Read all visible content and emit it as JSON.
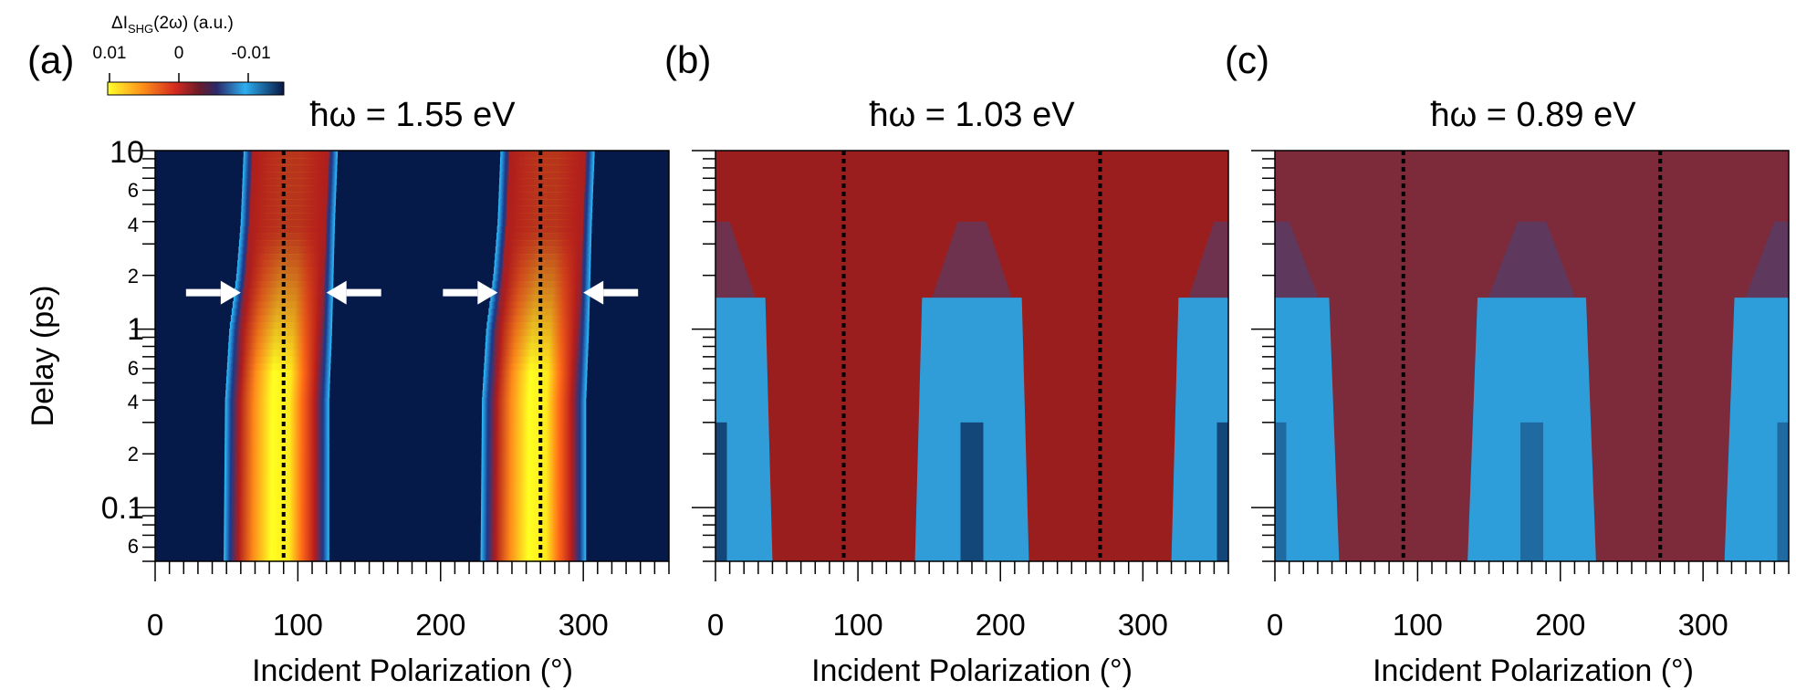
{
  "colorbar": {
    "title_prefix": "ΔI",
    "title_subscript": "SHG",
    "title_suffix": "(2ω) (a.u.)",
    "ticks": [
      "0.01",
      "0",
      "-0.01"
    ],
    "colors": [
      "#ffff2b",
      "#ff9a1a",
      "#d62b1e",
      "#7a1a1a",
      "#1a1a4a",
      "#2eaef0",
      "#0a1a4a"
    ]
  },
  "y_axis": {
    "label": "Delay (ps)",
    "scale": "log",
    "range": [
      0.05,
      10
    ],
    "major_labels": [
      "10",
      "1",
      "0.1"
    ],
    "minor_labels": [
      "6",
      "4",
      "2",
      "6",
      "4",
      "2",
      "6"
    ]
  },
  "x_axis": {
    "label": "Incident Polarization (°)",
    "range": [
      0,
      360
    ],
    "tick_labels": [
      "0",
      "100",
      "200",
      "300"
    ]
  },
  "chart_data": [
    {
      "type": "heatmap",
      "panel": "(a)",
      "title": "ħω = 1.55 eV",
      "xlabel": "Incident Polarization (°)",
      "ylabel": "Delay (ps)",
      "xlim": [
        0,
        360
      ],
      "ylim": [
        0.05,
        10
      ],
      "yscale": "log",
      "dashed_lines_x": [
        90,
        270
      ],
      "background": "#061a4a",
      "arrows": [
        {
          "x": 60,
          "y": 1.6,
          "direction": "right"
        },
        {
          "x": 120,
          "y": 1.6,
          "direction": "left"
        },
        {
          "x": 240,
          "y": 1.6,
          "direction": "right"
        },
        {
          "x": 300,
          "y": 1.6,
          "direction": "left"
        }
      ],
      "lobes": [
        {
          "center": 80,
          "left_edge": [
            [
              0.05,
              48
            ],
            [
              0.4,
              49
            ],
            [
              1.0,
              52
            ],
            [
              2.0,
              57
            ],
            [
              4.0,
              60
            ],
            [
              10,
              62
            ]
          ],
          "right_edge": [
            [
              0.05,
              122
            ],
            [
              0.4,
              122
            ],
            [
              1.0,
              124
            ],
            [
              2.0,
              125
            ],
            [
              4.0,
              126
            ],
            [
              10,
              128
            ]
          ]
        },
        {
          "center": 260,
          "left_edge": [
            [
              0.05,
              228
            ],
            [
              0.4,
              229
            ],
            [
              1.0,
              232
            ],
            [
              2.0,
              237
            ],
            [
              4.0,
              240
            ],
            [
              10,
              242
            ]
          ],
          "right_edge": [
            [
              0.05,
              302
            ],
            [
              0.4,
              302
            ],
            [
              1.0,
              304
            ],
            [
              2.0,
              305
            ],
            [
              4.0,
              306
            ],
            [
              10,
              308
            ]
          ]
        }
      ]
    },
    {
      "type": "heatmap",
      "panel": "(b)",
      "title": "ħω = 1.03 eV",
      "xlabel": "Incident Polarization (°)",
      "ylabel": "Delay (ps)",
      "xlim": [
        0,
        360
      ],
      "ylim": [
        0.05,
        10
      ],
      "yscale": "log",
      "dashed_lines_x": [
        90,
        270
      ],
      "background": "#9a1e1e",
      "blue_lobes_centers": [
        0,
        180,
        360
      ],
      "blue_lobe_halfwidth_at_0_05ps": 40,
      "blue_lobe_halfwidth_at_1_5ps": 35,
      "blue_onset_delay": 1.5
    },
    {
      "type": "heatmap",
      "panel": "(c)",
      "title": "ħω = 0.89 eV",
      "xlabel": "Incident Polarization (°)",
      "ylabel": "Delay (ps)",
      "xlim": [
        0,
        360
      ],
      "ylim": [
        0.05,
        10
      ],
      "yscale": "log",
      "dashed_lines_x": [
        90,
        270
      ],
      "background": "#7d2a3a",
      "blue_lobes_centers": [
        0,
        180,
        360
      ],
      "blue_lobe_halfwidth_at_0_05ps": 45,
      "blue_lobe_halfwidth_at_1_5ps": 38,
      "blue_onset_delay": 1.5
    }
  ],
  "panels": [
    {
      "letter": "(a)",
      "title": "ħω = 1.55 eV"
    },
    {
      "letter": "(b)",
      "title": "ħω = 1.03 eV"
    },
    {
      "letter": "(c)",
      "title": "ħω = 0.89 eV"
    }
  ]
}
